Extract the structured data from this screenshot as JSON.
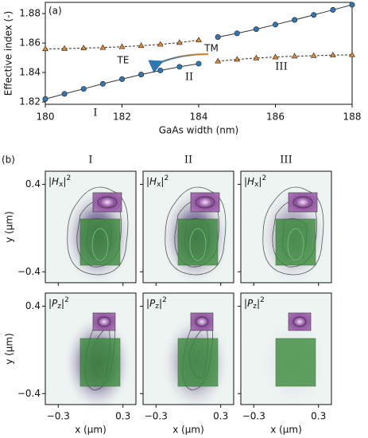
{
  "chart_data": [
    {
      "type": "line",
      "label": "(a)",
      "xlabel": "GaAs width (nm)",
      "ylabel": "Effective index (-)",
      "xlim": [
        180,
        188
      ],
      "ylim": [
        1.8184,
        1.8876
      ],
      "xticks": [
        180,
        182,
        184,
        186,
        188
      ],
      "yticks": [
        1.82,
        1.84,
        1.86,
        1.88
      ],
      "series": [
        {
          "color": "#2f77b4",
          "marker": "circle",
          "x": [
            180,
            180.5,
            181,
            181.5,
            182,
            182.5,
            183,
            183.5,
            184
          ],
          "values": [
            1.822,
            1.8255,
            1.8289,
            1.8323,
            1.8355,
            1.8386,
            1.8414,
            1.8439,
            1.846
          ]
        },
        {
          "color": "#2f77b4",
          "marker": "circle",
          "x": [
            184.5,
            185,
            185.5,
            186,
            186.5,
            187,
            187.5,
            188
          ],
          "values": [
            1.8641,
            1.8666,
            1.8694,
            1.8725,
            1.8757,
            1.8791,
            1.8825,
            1.886
          ]
        },
        {
          "color": "#e8872a",
          "marker": "triangle",
          "x": [
            180,
            180.5,
            181,
            181.5,
            182,
            182.5,
            183,
            183.5,
            184
          ],
          "values": [
            1.856,
            1.8562,
            1.8566,
            1.8569,
            1.8575,
            1.8582,
            1.8591,
            1.8603,
            1.862
          ]
        },
        {
          "color": "#e8872a",
          "marker": "triangle",
          "x": [
            184.5,
            185,
            185.5,
            186,
            186.5,
            187,
            187.5,
            188
          ],
          "values": [
            1.8477,
            1.8489,
            1.8498,
            1.8505,
            1.8511,
            1.8514,
            1.8518,
            1.852
          ]
        }
      ],
      "annotations": [
        "TE",
        "TM",
        "I",
        "II",
        "III"
      ]
    },
    {
      "type": "field_map",
      "label": "(b)",
      "columns": [
        "I",
        "II",
        "III"
      ],
      "rows": [
        [
          "|",
          "H",
          "x",
          "|",
          "2"
        ],
        [
          "|",
          "P",
          "z",
          "|",
          "2"
        ]
      ],
      "xlabel": "x (μm)",
      "ylabel": "y (μm)",
      "xlim": [
        -0.42,
        0.42
      ],
      "ylim": [
        -0.5,
        0.52
      ],
      "xticks": [
        {
          "value": -0.3,
          "label": "−0.3"
        },
        0.3
      ],
      "yticks": [
        0.4,
        {
          "value": -0.4,
          "label": "−0.4"
        }
      ]
    }
  ]
}
